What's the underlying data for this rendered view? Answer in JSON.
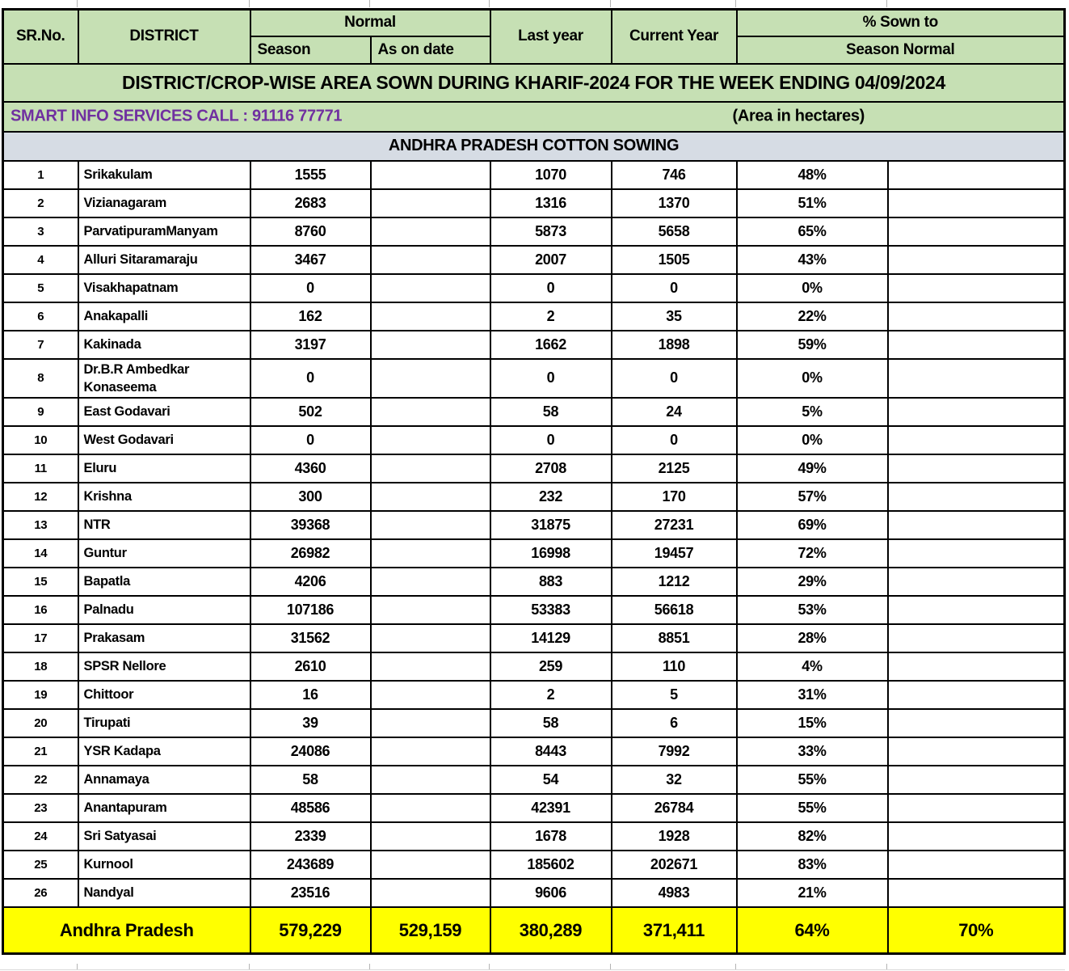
{
  "colors": {
    "green": "#c6e0b4",
    "bluegray": "#d6dce4",
    "yellow": "#ffff00",
    "purple": "#7030a0",
    "border": "#000000"
  },
  "title": "DISTRICT/CROP-WISE AREA SOWN DURING KHARIF-2024 FOR THE WEEK ENDING 04/09/2024",
  "info_bar": {
    "left": "SMART INFO SERVICES CALL : 91116 77771",
    "right": "(Area in hectares)"
  },
  "subtitle": "ANDHRA PRADESH COTTON SOWING",
  "header": {
    "sr_no": "SR.No.",
    "district": "DISTRICT",
    "normal": "Normal",
    "season": "Season",
    "as_on_date": "As on date",
    "last_year": "Last year",
    "current_year": "Current Year",
    "pct_line1": "% Sown to",
    "pct_line2": "Season Normal"
  },
  "rows": [
    {
      "sr": "1",
      "district": "Srikakulam",
      "season": "1555",
      "as_on_date": "",
      "last_year": "1070",
      "current_year": "746",
      "pct": "48%"
    },
    {
      "sr": "2",
      "district": "Vizianagaram",
      "season": "2683",
      "as_on_date": "",
      "last_year": "1316",
      "current_year": "1370",
      "pct": "51%"
    },
    {
      "sr": "3",
      "district": "ParvatipuramManyam",
      "season": "8760",
      "as_on_date": "",
      "last_year": "5873",
      "current_year": "5658",
      "pct": "65%"
    },
    {
      "sr": "4",
      "district": "Alluri Sitaramaraju",
      "season": "3467",
      "as_on_date": "",
      "last_year": "2007",
      "current_year": "1505",
      "pct": "43%"
    },
    {
      "sr": "5",
      "district": "Visakhapatnam",
      "season": "0",
      "as_on_date": "",
      "last_year": "0",
      "current_year": "0",
      "pct": "0%"
    },
    {
      "sr": "6",
      "district": "Anakapalli",
      "season": "162",
      "as_on_date": "",
      "last_year": "2",
      "current_year": "35",
      "pct": "22%"
    },
    {
      "sr": "7",
      "district": "Kakinada",
      "season": "3197",
      "as_on_date": "",
      "last_year": "1662",
      "current_year": "1898",
      "pct": "59%"
    },
    {
      "sr": "8",
      "district": "Dr.B.R Ambedkar Konaseema",
      "season": "0",
      "as_on_date": "",
      "last_year": "0",
      "current_year": "0",
      "pct": "0%"
    },
    {
      "sr": "9",
      "district": "East Godavari",
      "season": "502",
      "as_on_date": "",
      "last_year": "58",
      "current_year": "24",
      "pct": "5%"
    },
    {
      "sr": "10",
      "district": "West Godavari",
      "season": "0",
      "as_on_date": "",
      "last_year": "0",
      "current_year": "0",
      "pct": "0%"
    },
    {
      "sr": "11",
      "district": "Eluru",
      "season": "4360",
      "as_on_date": "",
      "last_year": "2708",
      "current_year": "2125",
      "pct": "49%"
    },
    {
      "sr": "12",
      "district": "Krishna",
      "season": "300",
      "as_on_date": "",
      "last_year": "232",
      "current_year": "170",
      "pct": "57%"
    },
    {
      "sr": "13",
      "district": "NTR",
      "season": "39368",
      "as_on_date": "",
      "last_year": "31875",
      "current_year": "27231",
      "pct": "69%"
    },
    {
      "sr": "14",
      "district": "Guntur",
      "season": "26982",
      "as_on_date": "",
      "last_year": "16998",
      "current_year": "19457",
      "pct": "72%"
    },
    {
      "sr": "15",
      "district": "Bapatla",
      "season": "4206",
      "as_on_date": "",
      "last_year": "883",
      "current_year": "1212",
      "pct": "29%"
    },
    {
      "sr": "16",
      "district": "Palnadu",
      "season": "107186",
      "as_on_date": "",
      "last_year": "53383",
      "current_year": "56618",
      "pct": "53%"
    },
    {
      "sr": "17",
      "district": "Prakasam",
      "season": "31562",
      "as_on_date": "",
      "last_year": "14129",
      "current_year": "8851",
      "pct": "28%"
    },
    {
      "sr": "18",
      "district": "SPSR Nellore",
      "season": "2610",
      "as_on_date": "",
      "last_year": "259",
      "current_year": "110",
      "pct": "4%"
    },
    {
      "sr": "19",
      "district": "Chittoor",
      "season": "16",
      "as_on_date": "",
      "last_year": "2",
      "current_year": "5",
      "pct": "31%"
    },
    {
      "sr": "20",
      "district": "Tirupati",
      "season": "39",
      "as_on_date": "",
      "last_year": "58",
      "current_year": "6",
      "pct": "15%"
    },
    {
      "sr": "21",
      "district": "YSR Kadapa",
      "season": "24086",
      "as_on_date": "",
      "last_year": "8443",
      "current_year": "7992",
      "pct": "33%"
    },
    {
      "sr": "22",
      "district": "Annamaya",
      "season": "58",
      "as_on_date": "",
      "last_year": "54",
      "current_year": "32",
      "pct": "55%"
    },
    {
      "sr": "23",
      "district": "Anantapuram",
      "season": "48586",
      "as_on_date": "",
      "last_year": "42391",
      "current_year": "26784",
      "pct": "55%"
    },
    {
      "sr": "24",
      "district": "Sri Satyasai",
      "season": "2339",
      "as_on_date": "",
      "last_year": "1678",
      "current_year": "1928",
      "pct": "82%"
    },
    {
      "sr": "25",
      "district": "Kurnool",
      "season": "243689",
      "as_on_date": "",
      "last_year": "185602",
      "current_year": "202671",
      "pct": "83%"
    },
    {
      "sr": "26",
      "district": "Nandyal",
      "season": "23516",
      "as_on_date": "",
      "last_year": "9606",
      "current_year": "4983",
      "pct": "21%"
    }
  ],
  "total": {
    "label": "Andhra Pradesh",
    "season": "579,229",
    "as_on_date": "529,159",
    "last_year": "380,289",
    "current_year": "371,411",
    "pct": "64%",
    "pct2": "70%"
  }
}
